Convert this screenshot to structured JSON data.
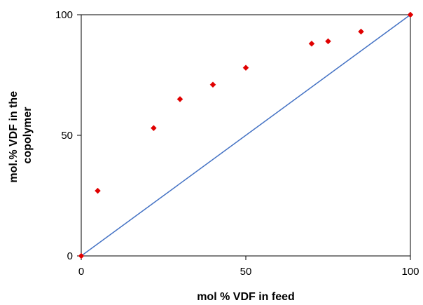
{
  "chart_data": {
    "type": "scatter",
    "title": "",
    "xlabel": "mol % VDF in feed",
    "ylabel_lines": [
      "mol.% VDF in the",
      "copolymer"
    ],
    "xlim": [
      0,
      100
    ],
    "ylim": [
      0,
      100
    ],
    "x_ticks": [
      0,
      50,
      100
    ],
    "y_ticks": [
      0,
      50,
      100
    ],
    "grid": false,
    "legend": "none",
    "series": [
      {
        "kind": "scatter",
        "marker": "diamond",
        "color": "#e00000",
        "x": [
          0,
          5,
          22,
          30,
          40,
          50,
          70,
          75,
          85,
          100
        ],
        "y": [
          0,
          27,
          53,
          65,
          71,
          78,
          88,
          89,
          93,
          100
        ]
      },
      {
        "kind": "line",
        "color": "#4472c4",
        "x": [
          0,
          100
        ],
        "y": [
          0,
          100
        ]
      }
    ]
  }
}
